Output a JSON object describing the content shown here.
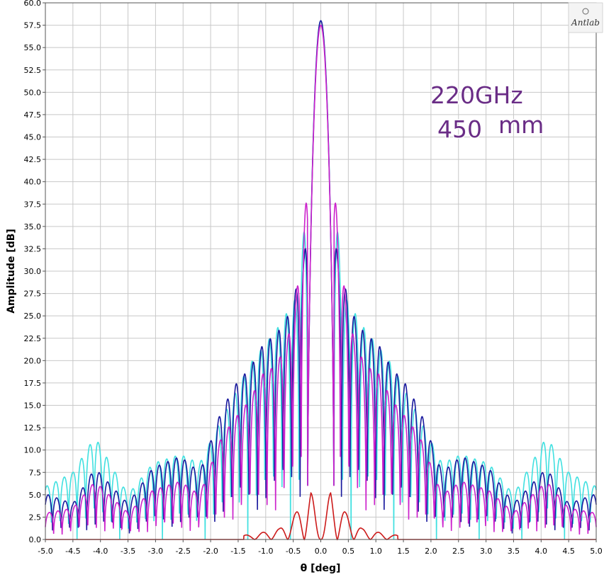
{
  "chart_data": {
    "type": "line",
    "xlabel": "θ [deg]",
    "ylabel": "Amplitude [dB]",
    "xlim": [
      -5.0,
      5.0
    ],
    "ylim": [
      0.0,
      60.0
    ],
    "x_ticks": [
      "-5.0",
      "-4.5",
      "-4.0",
      "-3.5",
      "-3.0",
      "-2.5",
      "-2.0",
      "-1.5",
      "-1.0",
      "-0.5",
      "0.0",
      "0.5",
      "1.0",
      "1.5",
      "2.0",
      "2.5",
      "3.0",
      "3.5",
      "4.0",
      "4.5",
      "5.0"
    ],
    "y_ticks": [
      "0.0",
      "2.5",
      "5.0",
      "7.5",
      "10.0",
      "12.5",
      "15.0",
      "17.5",
      "20.0",
      "22.5",
      "25.0",
      "27.5",
      "30.0",
      "32.5",
      "35.0",
      "37.5",
      "40.0",
      "42.5",
      "45.0",
      "47.5",
      "50.0",
      "52.5",
      "55.0",
      "57.5",
      "60.0"
    ],
    "grid": true,
    "annotations": [
      {
        "text": "220GHz"
      },
      {
        "text": "450"
      },
      {
        "text": "mm"
      }
    ],
    "logo": "Antlab",
    "series": [
      {
        "color": "#40e0e0",
        "peak": 58.0,
        "lobes": [
          [
            0.4,
            27.5
          ],
          [
            0.6,
            25.5
          ],
          [
            0.8,
            23.5
          ],
          [
            1.05,
            21.5
          ],
          [
            1.3,
            19.5
          ],
          [
            1.5,
            17.0
          ],
          [
            1.8,
            13.5
          ],
          [
            2.2,
            8.5
          ],
          [
            2.55,
            9.5
          ],
          [
            3.05,
            8.5
          ],
          [
            3.5,
            5.0
          ],
          [
            4.1,
            11.5
          ],
          [
            4.5,
            7.5
          ],
          [
            4.95,
            6.0
          ]
        ]
      },
      {
        "color": "#1a1a9e",
        "peak": 58.0,
        "lobes": [
          [
            0.3,
            31.5
          ],
          [
            0.45,
            28.0
          ],
          [
            0.6,
            25.0
          ],
          [
            0.8,
            23.0
          ],
          [
            1.05,
            21.8
          ],
          [
            1.3,
            19.0
          ],
          [
            1.5,
            17.8
          ],
          [
            1.8,
            14.5
          ],
          [
            2.2,
            7.5
          ],
          [
            2.55,
            9.3
          ],
          [
            3.05,
            8.0
          ],
          [
            3.5,
            4.0
          ],
          [
            4.1,
            8.0
          ],
          [
            4.5,
            4.0
          ],
          [
            4.95,
            5.0
          ]
        ]
      },
      {
        "color": "#cc22cc",
        "peak": 57.5,
        "lobes": [
          [
            0.3,
            35.5
          ],
          [
            0.45,
            27.0
          ],
          [
            0.6,
            22.5
          ],
          [
            0.8,
            19.5
          ],
          [
            1.05,
            18.5
          ],
          [
            1.3,
            15.5
          ],
          [
            1.5,
            14.0
          ],
          [
            1.8,
            11.5
          ],
          [
            2.2,
            5.0
          ],
          [
            2.55,
            6.5
          ],
          [
            3.05,
            5.5
          ],
          [
            3.5,
            3.0
          ],
          [
            4.1,
            6.5
          ],
          [
            4.5,
            3.5
          ],
          [
            4.95,
            3.0
          ]
        ]
      },
      {
        "color": "#cc1a1a",
        "peak": 0.0,
        "lobes": [
          [
            0.18,
            5.6
          ],
          [
            0.45,
            3.0
          ],
          [
            0.75,
            1.2
          ],
          [
            1.05,
            0.8
          ],
          [
            1.3,
            0.5
          ]
        ]
      }
    ]
  }
}
